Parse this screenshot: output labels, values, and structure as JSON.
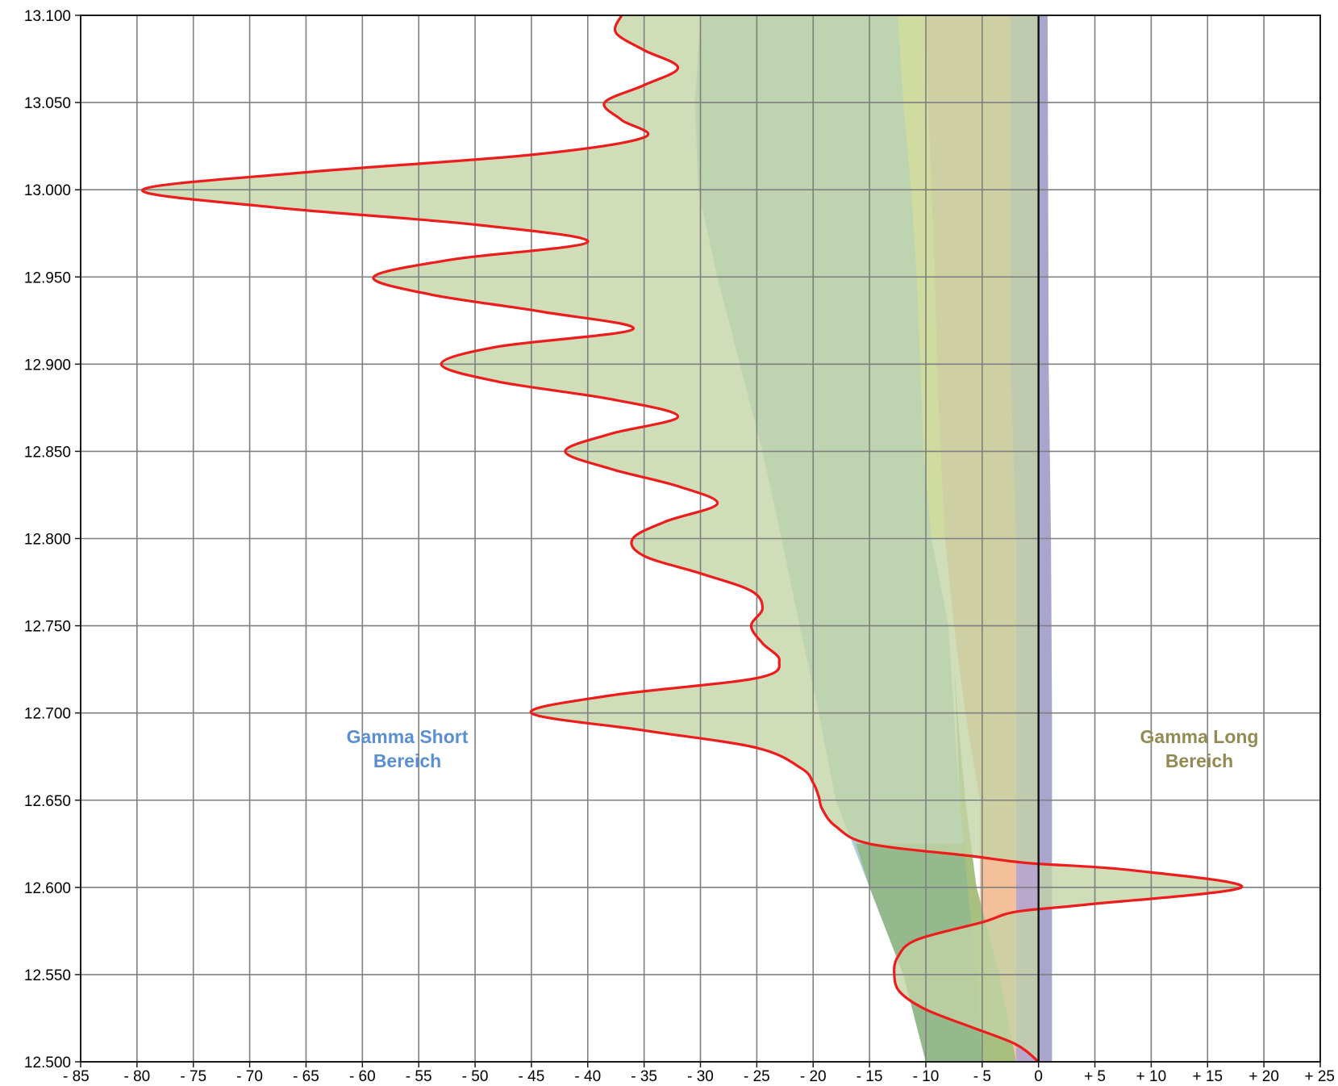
{
  "chart_data": {
    "type": "area",
    "orientation": "horizontal-values-vertical-prices",
    "x_ticks": [
      "- 85",
      "- 80",
      "- 75",
      "- 70",
      "- 65",
      "- 60",
      "- 55",
      "- 50",
      "- 45",
      "- 40",
      "- 35",
      "- 30",
      "- 25",
      "- 20",
      "- 15",
      "- 10",
      "- 5",
      "0",
      "+ 5",
      "+ 10",
      "+ 15",
      "+ 20",
      "+ 25"
    ],
    "y_ticks": [
      "12.500",
      "12.550",
      "12.600",
      "12.650",
      "12.700",
      "12.750",
      "12.800",
      "12.850",
      "12.900",
      "12.950",
      "13.000",
      "13.050",
      "13.100"
    ],
    "xlim": [
      -85,
      25
    ],
    "ylim": [
      12500,
      13100
    ],
    "grid": true,
    "annotations": [
      {
        "line1": "Gamma Short",
        "line2": "Bereich",
        "color": "#5b8fd4"
      },
      {
        "line1": "Gamma Long",
        "line2": "Bereich",
        "color": "#948a54"
      }
    ],
    "bands": [
      {
        "color": "#b8a9cc",
        "left": [
          [
            12500,
            -2
          ],
          [
            12600,
            -2
          ],
          [
            12700,
            -2
          ],
          [
            12800,
            -2
          ],
          [
            12900,
            -2.5
          ],
          [
            13000,
            -2.5
          ],
          [
            13100,
            -2.5
          ]
        ],
        "right": [
          [
            12500,
            1
          ],
          [
            12600,
            1
          ],
          [
            12700,
            1
          ],
          [
            12800,
            1
          ],
          [
            12900,
            0.8
          ],
          [
            13000,
            0.7
          ],
          [
            13100,
            0.7
          ]
        ]
      },
      {
        "color": "#a8a6cc",
        "left": [
          [
            12500,
            0
          ],
          [
            13100,
            0
          ]
        ],
        "right": [
          [
            12500,
            1.2
          ],
          [
            12700,
            1.2
          ],
          [
            12800,
            1.1
          ],
          [
            12900,
            0.9
          ],
          [
            13100,
            0.8
          ]
        ]
      },
      {
        "color": "#f4c09a",
        "left": [
          [
            12500,
            -5
          ],
          [
            12550,
            -5
          ],
          [
            12600,
            -5.2
          ],
          [
            12650,
            -5.2
          ],
          [
            12700,
            -6.5
          ],
          [
            12750,
            -7.5
          ],
          [
            12800,
            -8.3
          ],
          [
            12850,
            -8.7
          ],
          [
            12900,
            -9
          ],
          [
            12950,
            -9.2
          ],
          [
            13000,
            -9.5
          ],
          [
            13050,
            -9.8
          ],
          [
            13100,
            -10
          ]
        ],
        "right": [
          [
            12500,
            -2
          ],
          [
            12600,
            -2
          ],
          [
            12700,
            -2
          ],
          [
            12800,
            -2
          ],
          [
            12900,
            -2.5
          ],
          [
            13000,
            -2.5
          ],
          [
            13100,
            -2.5
          ]
        ]
      },
      {
        "color": "#fbf58a",
        "left": [
          [
            12800,
            -9.5
          ],
          [
            12850,
            -10.2
          ],
          [
            12900,
            -10.5
          ],
          [
            12950,
            -10.8
          ],
          [
            13000,
            -11.3
          ],
          [
            13050,
            -12
          ],
          [
            13100,
            -12.5
          ]
        ],
        "right": [
          [
            12800,
            -8.3
          ],
          [
            12850,
            -8.7
          ],
          [
            12900,
            -9
          ],
          [
            12950,
            -9.2
          ],
          [
            13000,
            -9.5
          ],
          [
            13050,
            -9.8
          ],
          [
            13100,
            -10
          ]
        ]
      },
      {
        "color": "#aecfd6",
        "left": [
          [
            12500,
            -10
          ],
          [
            12550,
            -12
          ],
          [
            12600,
            -15
          ],
          [
            12650,
            -18
          ],
          [
            12700,
            -19.5
          ],
          [
            12750,
            -21.2
          ],
          [
            12800,
            -22.8
          ],
          [
            12850,
            -24.5
          ],
          [
            12900,
            -26.5
          ],
          [
            12950,
            -28.5
          ],
          [
            13000,
            -30.2
          ],
          [
            13050,
            -30.5
          ],
          [
            13100,
            -30
          ]
        ],
        "right": [
          [
            12500,
            -5
          ],
          [
            12550,
            -5.5
          ],
          [
            12600,
            -6
          ],
          [
            12650,
            -7
          ],
          [
            12700,
            -7.5
          ],
          [
            12750,
            -8
          ],
          [
            12800,
            -9.5
          ],
          [
            12850,
            -10.2
          ],
          [
            12900,
            -10.5
          ],
          [
            12950,
            -10.8
          ],
          [
            13000,
            -11.3
          ],
          [
            13050,
            -12
          ],
          [
            13100,
            -12.5
          ]
        ]
      },
      {
        "color": "#94b98d",
        "left": [
          [
            12500,
            -10
          ],
          [
            12550,
            -12
          ],
          [
            12600,
            -15
          ],
          [
            12625,
            -16.2
          ]
        ],
        "right": [
          [
            12500,
            -2
          ],
          [
            12550,
            -3.5
          ],
          [
            12600,
            -5.5
          ],
          [
            12625,
            -6.5
          ]
        ]
      },
      {
        "color": "#a7c080",
        "left": [
          [
            12500,
            -5
          ],
          [
            12550,
            -5.5
          ],
          [
            12600,
            -6.3
          ],
          [
            12650,
            -7
          ],
          [
            12700,
            -7.3
          ],
          [
            12730,
            -7.5
          ]
        ],
        "right": [
          [
            12500,
            -2
          ],
          [
            12550,
            -3.5
          ],
          [
            12600,
            -5.5
          ],
          [
            12650,
            -6.5
          ],
          [
            12700,
            -7.2
          ],
          [
            12730,
            -7.5
          ]
        ]
      }
    ],
    "series": [
      {
        "color": "#ee1c1c",
        "fill": "#c3d4a5",
        "points": [
          [
            12500,
            0
          ],
          [
            12510,
            -2
          ],
          [
            12520,
            -6
          ],
          [
            12530,
            -10
          ],
          [
            12540,
            -12.3
          ],
          [
            12550,
            -12.8
          ],
          [
            12560,
            -12.5
          ],
          [
            12570,
            -10.8
          ],
          [
            12580,
            -5
          ],
          [
            12586,
            -2
          ],
          [
            12590,
            4
          ],
          [
            12600,
            18
          ],
          [
            12610,
            8
          ],
          [
            12614,
            -1
          ],
          [
            12618,
            -6
          ],
          [
            12625,
            -15
          ],
          [
            12635,
            -18
          ],
          [
            12645,
            -19.2
          ],
          [
            12652,
            -19.5
          ],
          [
            12660,
            -20
          ],
          [
            12668,
            -21
          ],
          [
            12680,
            -25
          ],
          [
            12690,
            -35
          ],
          [
            12700,
            -45
          ],
          [
            12710,
            -38
          ],
          [
            12720,
            -25
          ],
          [
            12730,
            -23
          ],
          [
            12740,
            -24.5
          ],
          [
            12750,
            -25.5
          ],
          [
            12760,
            -24.5
          ],
          [
            12770,
            -25.5
          ],
          [
            12780,
            -30
          ],
          [
            12790,
            -35
          ],
          [
            12800,
            -36
          ],
          [
            12810,
            -33
          ],
          [
            12820,
            -28.5
          ],
          [
            12830,
            -32
          ],
          [
            12840,
            -38
          ],
          [
            12850,
            -42
          ],
          [
            12860,
            -38
          ],
          [
            12870,
            -32
          ],
          [
            12880,
            -38
          ],
          [
            12890,
            -48
          ],
          [
            12900,
            -53
          ],
          [
            12910,
            -48
          ],
          [
            12920,
            -36
          ],
          [
            12930,
            -44
          ],
          [
            12940,
            -54
          ],
          [
            12950,
            -59
          ],
          [
            12960,
            -52
          ],
          [
            12970,
            -40
          ],
          [
            12980,
            -50
          ],
          [
            12990,
            -68
          ],
          [
            13000,
            -79.5
          ],
          [
            13010,
            -65
          ],
          [
            13020,
            -45
          ],
          [
            13030,
            -35
          ],
          [
            13040,
            -37
          ],
          [
            13050,
            -38.5
          ],
          [
            13060,
            -35
          ],
          [
            13070,
            -32
          ],
          [
            13080,
            -35
          ],
          [
            13090,
            -37.5
          ],
          [
            13100,
            -37
          ]
        ]
      }
    ]
  }
}
